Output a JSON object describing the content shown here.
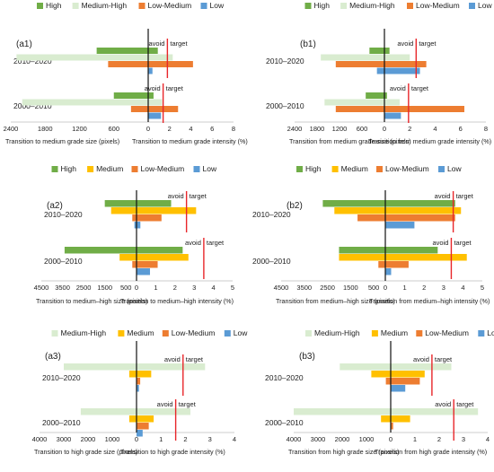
{
  "colors": {
    "High": "#70ad47",
    "Medium-High": "#d9ecd0",
    "Medium": "#ffc000",
    "Low-Medium": "#ed7d31",
    "Low": "#5b9bd5",
    "target_line": "#e8262a"
  },
  "chart_data": [
    {
      "id": "a1",
      "label": "(a1)",
      "type": "bar",
      "legend": [
        "High",
        "Medium-High",
        "Low-Medium",
        "Low"
      ],
      "categories": [
        "2010–2020",
        "2000–2010"
      ],
      "left_axis": {
        "label": "Transition to medium grade size (pixels)",
        "ticks": [
          2400,
          1800,
          1200,
          600,
          0
        ],
        "max": 2400
      },
      "right_axis": {
        "label": "Transition to medium grade intensity (%)",
        "ticks": [
          0,
          2,
          4,
          6,
          8
        ],
        "max": 8
      },
      "size": {
        "2010–2020": {
          "High": 900,
          "Medium-High": 2300,
          "Low-Medium": 700,
          "Low": 0
        },
        "2000–2010": {
          "High": 600,
          "Medium-High": 2200,
          "Low-Medium": 300,
          "Low": 0
        }
      },
      "intensity": {
        "2010–2020": {
          "High": 0.9,
          "Medium-High": 2.3,
          "Low-Medium": 4.2,
          "Low": 0.4
        },
        "2000–2010": {
          "High": 0.5,
          "Medium-High": 1.3,
          "Low-Medium": 2.8,
          "Low": 1.2
        }
      },
      "target": {
        "2010–2020": 1.8,
        "2000–2010": 1.4
      },
      "annotation": [
        "avoid",
        "target"
      ]
    },
    {
      "id": "b1",
      "label": "(b1)",
      "type": "bar",
      "legend": [
        "High",
        "Medium-High",
        "Low-Medium",
        "Low"
      ],
      "categories": [
        "2010–2020",
        "2000–2010"
      ],
      "left_axis": {
        "label": "Transition from medium grade size (pixels)",
        "ticks": [
          2400,
          1800,
          1200,
          600,
          0
        ],
        "max": 2400
      },
      "right_axis": {
        "label": "Transition from medium grade intensity (%)",
        "ticks": [
          0,
          2,
          4,
          6,
          8
        ],
        "max": 8
      },
      "size": {
        "2010–2020": {
          "High": 400,
          "Medium-High": 1700,
          "Low-Medium": 1300,
          "Low": 200
        },
        "2000–2010": {
          "High": 500,
          "Medium-High": 1600,
          "Low-Medium": 1300,
          "Low": 0
        }
      },
      "intensity": {
        "2010–2020": {
          "High": 0.4,
          "Medium-High": 2.0,
          "Low-Medium": 3.3,
          "Low": 2.8
        },
        "2000–2010": {
          "High": 0.2,
          "Medium-High": 1.2,
          "Low-Medium": 6.3,
          "Low": 1.3
        }
      },
      "target": {
        "2010–2020": 2.5,
        "2000–2010": 1.9
      },
      "annotation": [
        "avoid",
        "target"
      ]
    },
    {
      "id": "a2",
      "label": "(a2)",
      "type": "bar",
      "legend": [
        "High",
        "Medium",
        "Low-Medium",
        "Low"
      ],
      "categories": [
        "2010–2020",
        "2000–2010"
      ],
      "left_axis": {
        "label": "Transition to medium–high size (pixels)",
        "ticks": [
          4500,
          3500,
          2500,
          1500,
          500,
          0
        ],
        "max": 4500
      },
      "right_axis": {
        "label": "Transition to medium–high intensity (%)",
        "ticks": [
          0,
          1,
          2,
          3,
          4,
          5
        ],
        "max": 5
      },
      "size": {
        "2010–2020": {
          "High": 1500,
          "Medium": 1200,
          "Low-Medium": 200,
          "Low": 100
        },
        "2000–2010": {
          "High": 3400,
          "Medium": 800,
          "Low-Medium": 200,
          "Low": 0
        }
      },
      "intensity": {
        "2010–2020": {
          "High": 1.8,
          "Medium": 3.1,
          "Low-Medium": 1.3,
          "Low": 0.2
        },
        "2000–2010": {
          "High": 2.4,
          "Medium": 2.7,
          "Low-Medium": 1.1,
          "Low": 0.7
        }
      },
      "target": {
        "2010–2020": 2.6,
        "2000–2010": 3.5
      },
      "annotation": [
        "avoid",
        "target"
      ]
    },
    {
      "id": "b2",
      "label": "(b2)",
      "type": "bar",
      "legend": [
        "High",
        "Medium",
        "Low-Medium",
        "Low"
      ],
      "categories": [
        "2010–2020",
        "2000–2010"
      ],
      "left_axis": {
        "label": "Transition from medium–high size (pixels)",
        "ticks": [
          4500,
          3500,
          2500,
          1500,
          500,
          0
        ],
        "max": 4500
      },
      "right_axis": {
        "label": "Transition from medium–high intensity (%)",
        "ticks": [
          0,
          1,
          2,
          3,
          4,
          5
        ],
        "max": 5
      },
      "size": {
        "2010–2020": {
          "High": 2700,
          "Medium": 2200,
          "Low-Medium": 1200,
          "Low": 0
        },
        "2000–2010": {
          "High": 2000,
          "Medium": 2000,
          "Low-Medium": 300,
          "Low": 0
        }
      },
      "intensity": {
        "2010–2020": {
          "High": 3.6,
          "Medium": 3.9,
          "Low-Medium": 3.6,
          "Low": 1.5
        },
        "2000–2010": {
          "High": 2.7,
          "Medium": 4.2,
          "Low-Medium": 1.2,
          "Low": 0.3
        }
      },
      "target": {
        "2010–2020": 3.5,
        "2000–2010": 3.4
      },
      "annotation": [
        "avoid",
        "target"
      ]
    },
    {
      "id": "a3",
      "label": "(a3)",
      "type": "bar",
      "legend": [
        "Medium-High",
        "Medium",
        "Low-Medium",
        "Low"
      ],
      "categories": [
        "2010–2020",
        "2000–2010"
      ],
      "left_axis": {
        "label": "Transition to high grade size (pixels)",
        "ticks": [
          4000,
          3000,
          2000,
          1000,
          0
        ],
        "max": 4000
      },
      "right_axis": {
        "label": "Transition to high grade intensity (%)",
        "ticks": [
          0,
          1,
          2,
          3,
          4
        ],
        "max": 4
      },
      "size": {
        "2010–2020": {
          "Medium-High": 3000,
          "Medium": 300,
          "Low-Medium": 0,
          "Low": 0
        },
        "2000–2010": {
          "Medium-High": 2300,
          "Medium": 300,
          "Low-Medium": 0,
          "Low": 0
        }
      },
      "intensity": {
        "2010–2020": {
          "Medium-High": 2.8,
          "Medium": 0.6,
          "Low-Medium": 0.15,
          "Low": 0.1
        },
        "2000–2010": {
          "Medium-High": 2.2,
          "Medium": 0.7,
          "Low-Medium": 0.5,
          "Low": 0.25
        }
      },
      "target": {
        "2010–2020": 1.9,
        "2000–2010": 1.6
      },
      "annotation": [
        "avoid",
        "target"
      ]
    },
    {
      "id": "b3",
      "label": "(b3)",
      "type": "bar",
      "legend": [
        "Medium-High",
        "Medium",
        "Low-Medium",
        "Low"
      ],
      "categories": [
        "2010–2020",
        "2000–2010"
      ],
      "left_axis": {
        "label": "Transition from high grade size (pixels)",
        "ticks": [
          4000,
          3000,
          2000,
          1000,
          0
        ],
        "max": 4000
      },
      "right_axis": {
        "label": "Transition from high grade intensity (%)",
        "ticks": [
          0,
          1,
          2,
          3,
          4
        ],
        "max": 4
      },
      "size": {
        "2010–2020": {
          "Medium-High": 2100,
          "Medium": 800,
          "Low-Medium": 200,
          "Low": 0
        },
        "2000–2010": {
          "Medium-High": 4000,
          "Medium": 400,
          "Low-Medium": 0,
          "Low": 0
        }
      },
      "intensity": {
        "2010–2020": {
          "Medium-High": 2.5,
          "Medium": 1.4,
          "Low-Medium": 1.2,
          "Low": 0.6
        },
        "2000–2010": {
          "Medium-High": 3.6,
          "Medium": 0.8,
          "Low-Medium": 0.1,
          "Low": 0
        }
      },
      "target": {
        "2010–2020": 1.7,
        "2000–2010": 2.6
      },
      "annotation": [
        "avoid",
        "target"
      ]
    }
  ]
}
